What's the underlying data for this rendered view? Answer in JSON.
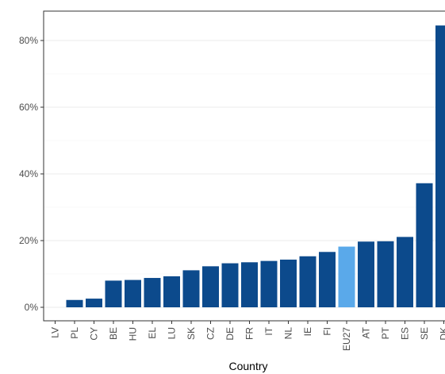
{
  "chart_data": {
    "type": "bar",
    "xlabel": "Country",
    "ylabel": "",
    "ylim": [
      0,
      88
    ],
    "yticks": [
      0,
      20,
      40,
      60,
      80
    ],
    "ytick_labels": [
      "0%",
      "20%",
      "40%",
      "60%",
      "80%"
    ],
    "categories": [
      "LV",
      "PL",
      "CY",
      "BE",
      "HU",
      "EL",
      "LU",
      "SK",
      "CZ",
      "DE",
      "FR",
      "IT",
      "NL",
      "IE",
      "FI",
      "EU27",
      "AT",
      "PT",
      "ES",
      "SE",
      "DK"
    ],
    "values": [
      0,
      2.2,
      2.6,
      8.0,
      8.2,
      8.8,
      9.3,
      11.1,
      12.3,
      13.2,
      13.5,
      13.9,
      14.3,
      15.3,
      16.6,
      18.2,
      19.7,
      19.8,
      21.1,
      37.2,
      84.5
    ],
    "highlight": "EU27",
    "colors": {
      "bar": "#0c4a8c",
      "highlight": "#5aa9ea",
      "grid": "#ebebeb",
      "panel_border": "#333333"
    },
    "grid": true,
    "legend": "none"
  }
}
